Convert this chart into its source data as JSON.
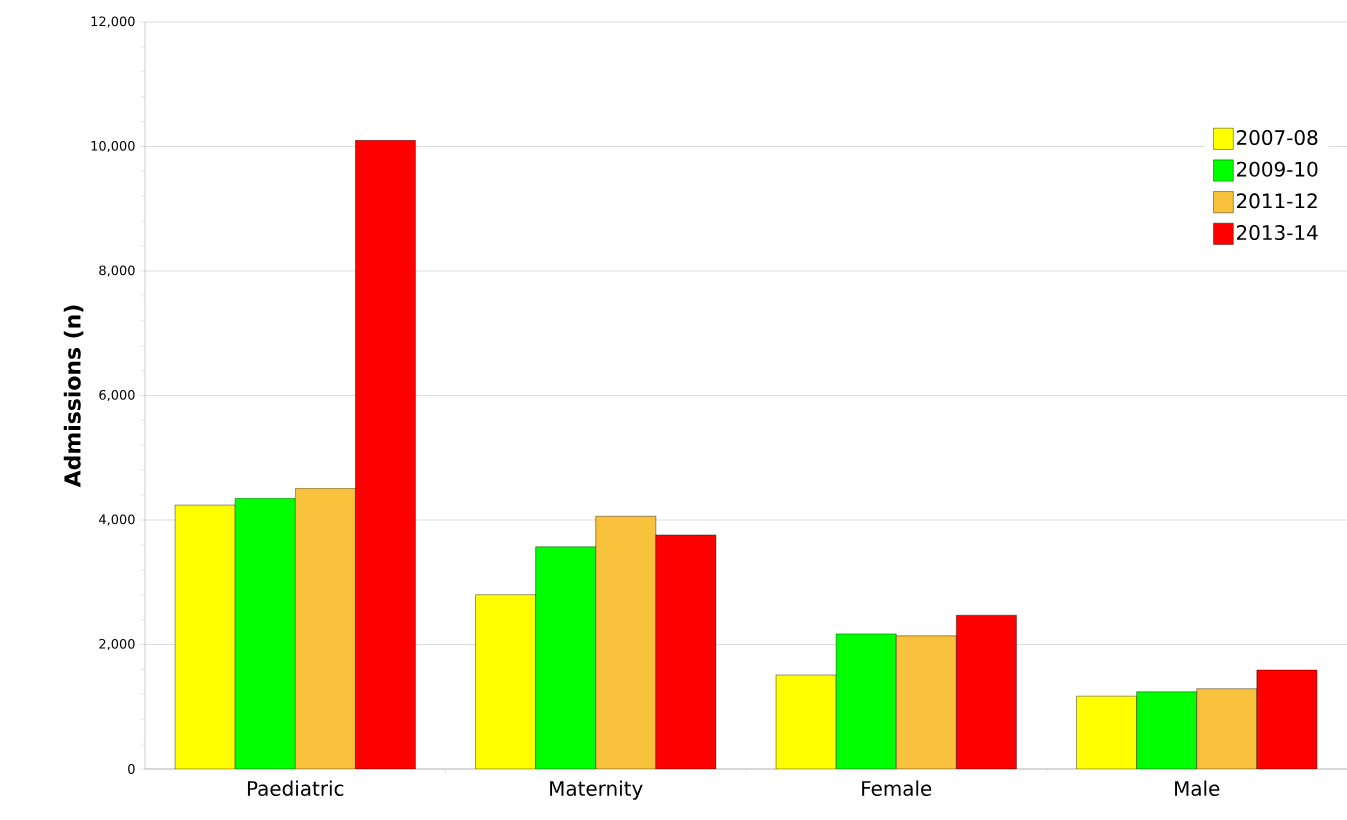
{
  "chart_data": {
    "type": "bar",
    "ylabel": "Admissions (n)",
    "categories": [
      "Paediatric",
      "Maternity",
      "Female",
      "Male"
    ],
    "series": [
      {
        "name": "2007-08",
        "color": "#ffff00",
        "values": [
          4240,
          2800,
          1510,
          1170
        ]
      },
      {
        "name": "2009-10",
        "color": "#00ff00",
        "values": [
          4350,
          3570,
          2170,
          1240
        ]
      },
      {
        "name": "2011-12",
        "color": "#f8c23c",
        "values": [
          4510,
          4060,
          2140,
          1290
        ]
      },
      {
        "name": "2013-14",
        "color": "#ff0000",
        "values": [
          10100,
          3760,
          2470,
          1590
        ]
      }
    ],
    "ylim": [
      0,
      12000
    ],
    "yticks": [
      {
        "value": 0,
        "label": "0"
      },
      {
        "value": 2000,
        "label": "2,000"
      },
      {
        "value": 4000,
        "label": "4,000"
      },
      {
        "value": 6000,
        "label": "6,000"
      },
      {
        "value": 8000,
        "label": "8,000"
      },
      {
        "value": 10000,
        "label": "10,000"
      },
      {
        "value": 12000,
        "label": "12,000"
      }
    ],
    "grid": "y",
    "legend": "right"
  }
}
